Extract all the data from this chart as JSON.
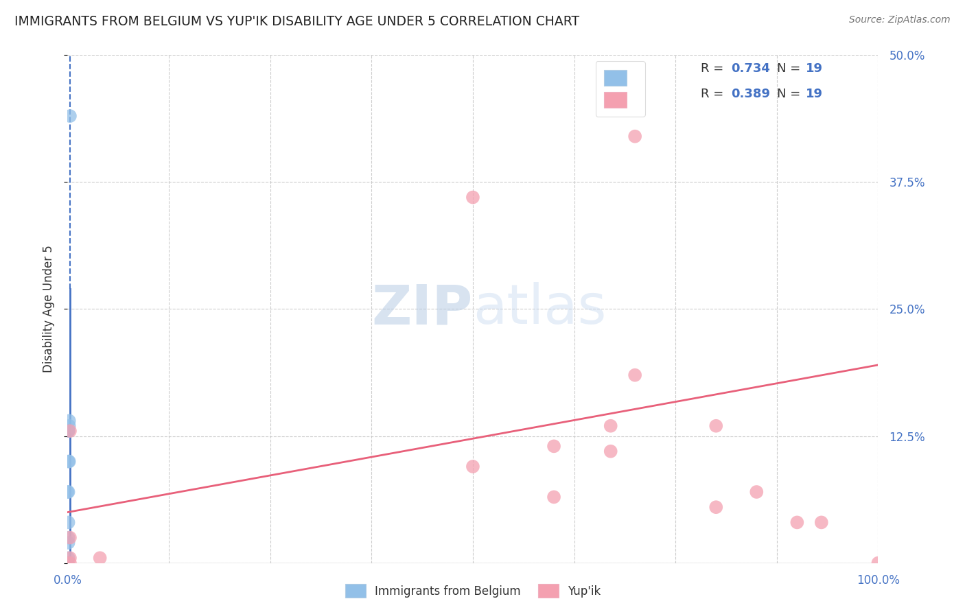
{
  "title": "IMMIGRANTS FROM BELGIUM VS YUP'IK DISABILITY AGE UNDER 5 CORRELATION CHART",
  "source": "Source: ZipAtlas.com",
  "xlabel_blue": "Immigrants from Belgium",
  "xlabel_pink": "Yup'ik",
  "ylabel": "Disability Age Under 5",
  "watermark": "ZIPatlas",
  "legend_blue_R": "0.734",
  "legend_blue_N": "19",
  "legend_pink_R": "0.389",
  "legend_pink_N": "19",
  "blue_scatter_x": [
    0.003,
    0.0,
    0.0,
    0.0,
    0.0,
    0.0,
    0.002,
    0.001,
    0.002,
    0.001,
    0.001,
    0.0,
    0.001,
    0.001,
    0.002,
    0.001,
    0.001,
    0.001,
    0.0
  ],
  "blue_scatter_y": [
    0.44,
    0.0,
    0.0,
    0.0,
    0.0,
    0.0,
    0.14,
    0.13,
    0.1,
    0.1,
    0.07,
    0.07,
    0.04,
    0.025,
    0.135,
    0.13,
    0.02,
    0.005,
    0.0
  ],
  "pink_scatter_x": [
    0.003,
    0.04,
    0.003,
    0.003,
    0.003,
    0.5,
    0.5,
    0.6,
    0.6,
    0.67,
    0.67,
    0.7,
    0.7,
    0.8,
    0.8,
    0.85,
    0.9,
    0.93,
    1.0
  ],
  "pink_scatter_y": [
    0.005,
    0.005,
    0.0,
    0.025,
    0.13,
    0.095,
    0.36,
    0.115,
    0.065,
    0.135,
    0.11,
    0.185,
    0.42,
    0.135,
    0.055,
    0.07,
    0.04,
    0.04,
    0.0
  ],
  "blue_line_x": [
    0.003,
    0.003
  ],
  "blue_line_y": [
    0.0,
    0.5
  ],
  "blue_dashed_above": 0.27,
  "pink_line_x": [
    0.0,
    1.0
  ],
  "pink_line_y_start": 0.05,
  "pink_line_y_end": 0.195,
  "blue_color": "#92c0e8",
  "pink_color": "#f4a0b0",
  "blue_line_color": "#4472c4",
  "pink_line_color": "#e8607a",
  "xlim": [
    0.0,
    1.0
  ],
  "ylim": [
    0.0,
    0.5
  ],
  "xticks": [
    0.0,
    0.125,
    0.25,
    0.375,
    0.5,
    0.625,
    0.75,
    0.875,
    1.0
  ],
  "xtick_labels_show": [
    "0.0%",
    "100.0%"
  ],
  "yticks": [
    0.0,
    0.125,
    0.25,
    0.375,
    0.5
  ],
  "ytick_labels_right": [
    "",
    "12.5%",
    "25.0%",
    "37.5%",
    "50.0%"
  ],
  "background_color": "#ffffff",
  "grid_color": "#cccccc",
  "scatter_size": 200,
  "tick_color": "#4472c4"
}
